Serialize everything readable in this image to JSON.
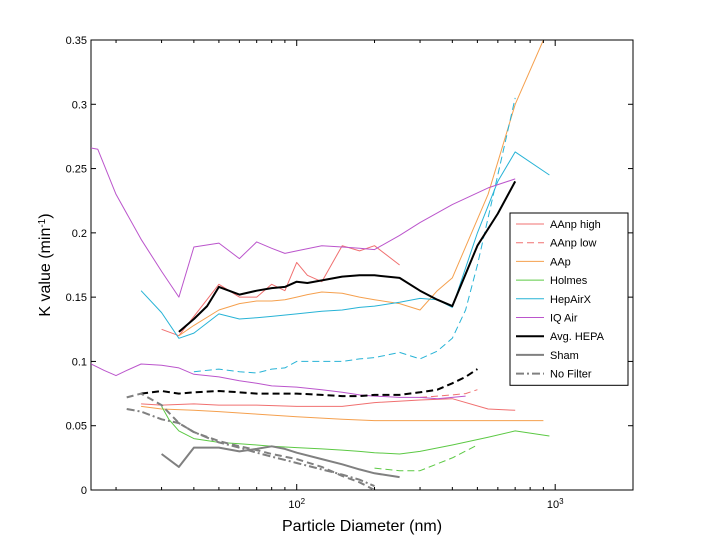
{
  "chart_data": {
    "type": "line",
    "title": "",
    "xlabel": "Particle Diameter (nm)",
    "ylabel": "K value (min",
    "ylabel_sup": "-1",
    "ylabel_close": ")",
    "x_scale": "log",
    "xlim": [
      16,
      2000
    ],
    "ylim": [
      0,
      0.35
    ],
    "grid": false,
    "legend_position": "right",
    "x_tick_labels": [
      {
        "value": 100,
        "base": "10",
        "exp": "2"
      },
      {
        "value": 1000,
        "base": "10",
        "exp": "3"
      }
    ],
    "y_ticks": [
      0,
      0.05,
      0.1,
      0.15,
      0.2,
      0.25,
      0.3,
      0.35
    ],
    "y_tick_labels": [
      "0",
      "0.05",
      "0.1",
      "0.15",
      "0.2",
      "0.25",
      "0.3",
      "0.35"
    ],
    "series": [
      {
        "name": "AAnp high",
        "color": "#f07070",
        "dash": "solid",
        "width": 1,
        "x": [
          30,
          35,
          40,
          50,
          60,
          70,
          80,
          90,
          100,
          110,
          125,
          150,
          175,
          200,
          250
        ],
        "y": [
          0.125,
          0.12,
          0.135,
          0.16,
          0.15,
          0.15,
          0.16,
          0.155,
          0.177,
          0.167,
          0.162,
          0.19,
          0.186,
          0.19,
          0.175
        ]
      },
      {
        "name": "AAnp high",
        "color": "#f07070",
        "dash": "solid",
        "width": 1,
        "x": [
          25,
          30,
          40,
          50,
          70,
          100,
          150,
          200,
          300,
          400,
          550,
          700
        ],
        "y": [
          0.067,
          0.066,
          0.067,
          0.066,
          0.066,
          0.065,
          0.065,
          0.068,
          0.07,
          0.071,
          0.063,
          0.062
        ]
      },
      {
        "name": "AAnp low",
        "color": "#f07070",
        "dash": "dash",
        "width": 1,
        "x": [
          300,
          350,
          400,
          450,
          500
        ],
        "y": [
          0.072,
          0.073,
          0.074,
          0.075,
          0.078
        ]
      },
      {
        "name": "AAp",
        "color": "#f5a04e",
        "dash": "solid",
        "width": 1,
        "x": [
          35,
          40,
          50,
          60,
          70,
          80,
          90,
          100,
          110,
          125,
          150,
          175,
          200,
          250,
          300,
          350,
          400,
          550,
          700,
          900
        ],
        "y": [
          0.12,
          0.128,
          0.14,
          0.145,
          0.147,
          0.147,
          0.148,
          0.15,
          0.152,
          0.154,
          0.153,
          0.15,
          0.148,
          0.145,
          0.14,
          0.155,
          0.165,
          0.23,
          0.3,
          0.35
        ]
      },
      {
        "name": "AAp",
        "color": "#f5a04e",
        "dash": "solid",
        "width": 1,
        "x": [
          25,
          30,
          40,
          50,
          70,
          100,
          150,
          200,
          300,
          400,
          550,
          700,
          900
        ],
        "y": [
          0.065,
          0.063,
          0.062,
          0.061,
          0.059,
          0.057,
          0.055,
          0.054,
          0.054,
          0.054,
          0.054,
          0.054,
          0.054
        ]
      },
      {
        "name": "Holmes",
        "color": "#5cc944",
        "dash": "solid",
        "width": 1,
        "x": [
          30,
          32,
          35,
          40,
          50,
          60,
          70,
          80,
          100,
          125,
          150,
          175,
          200,
          250,
          300,
          400,
          550,
          700,
          950
        ],
        "y": [
          0.065,
          0.055,
          0.046,
          0.04,
          0.037,
          0.036,
          0.035,
          0.034,
          0.033,
          0.032,
          0.031,
          0.03,
          0.029,
          0.028,
          0.03,
          0.035,
          0.041,
          0.046,
          0.042
        ]
      },
      {
        "name": "Holmes",
        "color": "#5cc944",
        "dash": "dash",
        "width": 1,
        "x": [
          200,
          250,
          300,
          400,
          500
        ],
        "y": [
          0.017,
          0.015,
          0.015,
          0.025,
          0.035
        ]
      },
      {
        "name": "HepAirX",
        "color": "#27b3d6",
        "dash": "solid",
        "width": 1,
        "x": [
          25,
          30,
          35,
          40,
          50,
          60,
          70,
          80,
          100,
          125,
          150,
          175,
          200,
          250,
          300,
          350,
          400,
          500,
          600,
          700,
          950
        ],
        "y": [
          0.155,
          0.138,
          0.118,
          0.122,
          0.137,
          0.133,
          0.134,
          0.135,
          0.137,
          0.139,
          0.14,
          0.142,
          0.143,
          0.146,
          0.149,
          0.148,
          0.142,
          0.2,
          0.24,
          0.263,
          0.245
        ]
      },
      {
        "name": "HepAirX",
        "color": "#27b3d6",
        "dash": "dash",
        "width": 1,
        "x": [
          40,
          50,
          60,
          70,
          80,
          90,
          100,
          110,
          125,
          150,
          175,
          200,
          250,
          300,
          350,
          400,
          450,
          500,
          600,
          700
        ],
        "y": [
          0.092,
          0.094,
          0.092,
          0.091,
          0.094,
          0.095,
          0.1,
          0.1,
          0.1,
          0.1,
          0.102,
          0.103,
          0.107,
          0.102,
          0.108,
          0.118,
          0.14,
          0.175,
          0.245,
          0.305
        ]
      },
      {
        "name": "IQ Air",
        "color": "#bb55cc",
        "dash": "solid",
        "width": 1,
        "x": [
          16,
          17,
          20,
          25,
          30,
          35,
          40,
          50,
          60,
          70,
          80,
          90,
          100,
          125,
          150,
          175,
          200,
          250,
          300,
          400,
          550,
          700
        ],
        "y": [
          0.266,
          0.265,
          0.23,
          0.195,
          0.17,
          0.15,
          0.189,
          0.192,
          0.18,
          0.193,
          0.188,
          0.184,
          0.186,
          0.19,
          0.189,
          0.188,
          0.187,
          0.198,
          0.208,
          0.222,
          0.235,
          0.242
        ]
      },
      {
        "name": "IQ Air",
        "color": "#bb55cc",
        "dash": "solid",
        "width": 1,
        "x": [
          16,
          18,
          20,
          22,
          25,
          30,
          35,
          40,
          50,
          60,
          70,
          80,
          100,
          125,
          150,
          175,
          200,
          250,
          300,
          350,
          400,
          450
        ],
        "y": [
          0.098,
          0.093,
          0.089,
          0.093,
          0.098,
          0.097,
          0.095,
          0.09,
          0.088,
          0.085,
          0.083,
          0.081,
          0.08,
          0.078,
          0.076,
          0.074,
          0.073,
          0.072,
          0.072,
          0.071,
          0.072,
          0.073
        ]
      },
      {
        "name": "Avg. HEPA",
        "color": "#000000",
        "dash": "solid",
        "width": 2,
        "x": [
          35,
          40,
          45,
          50,
          60,
          70,
          80,
          90,
          100,
          110,
          125,
          150,
          175,
          200,
          250,
          300,
          350,
          400,
          500,
          600,
          700
        ],
        "y": [
          0.123,
          0.133,
          0.143,
          0.158,
          0.152,
          0.155,
          0.157,
          0.158,
          0.162,
          0.161,
          0.163,
          0.166,
          0.167,
          0.167,
          0.165,
          0.155,
          0.148,
          0.143,
          0.19,
          0.215,
          0.24
        ]
      },
      {
        "name": "Avg. HEPA",
        "color": "#000000",
        "dash": "dash",
        "width": 2,
        "x": [
          25,
          30,
          35,
          40,
          50,
          60,
          70,
          80,
          90,
          100,
          125,
          150,
          175,
          200,
          250,
          300,
          350,
          400,
          450,
          500
        ],
        "y": [
          0.075,
          0.077,
          0.075,
          0.076,
          0.077,
          0.076,
          0.075,
          0.075,
          0.075,
          0.075,
          0.074,
          0.073,
          0.073,
          0.074,
          0.074,
          0.076,
          0.078,
          0.083,
          0.088,
          0.094
        ]
      },
      {
        "name": "Sham",
        "color": "#808080",
        "dash": "solid",
        "width": 2,
        "x": [
          30,
          35,
          40,
          50,
          60,
          70,
          80,
          90,
          100,
          125,
          150,
          175,
          200,
          250
        ],
        "y": [
          0.028,
          0.018,
          0.033,
          0.033,
          0.03,
          0.032,
          0.034,
          0.032,
          0.029,
          0.024,
          0.02,
          0.016,
          0.013,
          0.01
        ]
      },
      {
        "name": "Sham",
        "color": "#808080",
        "dash": "dash",
        "width": 2,
        "x": [
          22,
          25,
          30,
          35,
          40,
          50,
          60,
          70,
          80,
          100,
          125,
          150,
          175,
          200
        ],
        "y": [
          0.072,
          0.075,
          0.066,
          0.052,
          0.045,
          0.038,
          0.034,
          0.031,
          0.028,
          0.024,
          0.018,
          0.011,
          0.006,
          0.0
        ]
      },
      {
        "name": "No Filter",
        "color": "#808080",
        "dash": "dashdot",
        "width": 2,
        "x": [
          22,
          25,
          30,
          35,
          40,
          50,
          60,
          70,
          80,
          100,
          125,
          150,
          175,
          200
        ],
        "y": [
          0.063,
          0.061,
          0.055,
          0.052,
          0.045,
          0.037,
          0.033,
          0.029,
          0.026,
          0.021,
          0.016,
          0.012,
          0.008,
          0.003
        ]
      }
    ],
    "legend": [
      {
        "label": "AAnp high",
        "color": "#f07070",
        "dash": "solid",
        "width": 1
      },
      {
        "label": "AAnp low",
        "color": "#f07070",
        "dash": "dash",
        "width": 1
      },
      {
        "label": "AAp",
        "color": "#f5a04e",
        "dash": "solid",
        "width": 1
      },
      {
        "label": "Holmes",
        "color": "#5cc944",
        "dash": "solid",
        "width": 1
      },
      {
        "label": "HepAirX",
        "color": "#27b3d6",
        "dash": "solid",
        "width": 1
      },
      {
        "label": "IQ Air",
        "color": "#bb55cc",
        "dash": "solid",
        "width": 1
      },
      {
        "label": "Avg. HEPA",
        "color": "#000000",
        "dash": "solid",
        "width": 2
      },
      {
        "label": "Sham",
        "color": "#808080",
        "dash": "solid",
        "width": 2
      },
      {
        "label": "No Filter",
        "color": "#808080",
        "dash": "dashdot",
        "width": 2
      }
    ]
  }
}
